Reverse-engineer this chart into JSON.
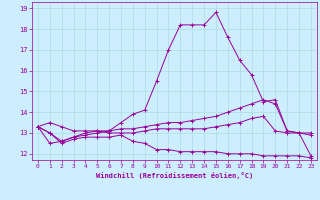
{
  "xlabel": "Windchill (Refroidissement éolien,°C)",
  "background_color": "#cceeff",
  "line_color": "#990099",
  "grid_color": "#aadddd",
  "xlim": [
    -0.5,
    23.5
  ],
  "ylim": [
    11.7,
    19.3
  ],
  "yticks": [
    12,
    13,
    14,
    15,
    16,
    17,
    18,
    19
  ],
  "xticks": [
    0,
    1,
    2,
    3,
    4,
    5,
    6,
    7,
    8,
    9,
    10,
    11,
    12,
    13,
    14,
    15,
    16,
    17,
    18,
    19,
    20,
    21,
    22,
    23
  ],
  "series": [
    [
      13.3,
      13.0,
      12.5,
      12.7,
      12.8,
      12.8,
      12.8,
      12.9,
      12.6,
      12.5,
      12.2,
      12.2,
      12.1,
      12.1,
      12.1,
      12.1,
      12.0,
      12.0,
      12.0,
      11.9,
      11.9,
      11.9,
      11.9,
      11.8
    ],
    [
      13.3,
      13.5,
      13.3,
      13.1,
      13.1,
      13.1,
      13.0,
      13.0,
      13.0,
      13.1,
      13.2,
      13.2,
      13.2,
      13.2,
      13.2,
      13.3,
      13.4,
      13.5,
      13.7,
      13.8,
      13.1,
      13.0,
      13.0,
      13.0
    ],
    [
      13.3,
      13.0,
      12.6,
      12.8,
      13.0,
      13.1,
      13.1,
      13.2,
      13.2,
      13.3,
      13.4,
      13.5,
      13.5,
      13.6,
      13.7,
      13.8,
      14.0,
      14.2,
      14.4,
      14.6,
      14.4,
      13.1,
      13.0,
      12.9
    ],
    [
      13.3,
      12.5,
      12.6,
      12.8,
      12.9,
      13.0,
      13.1,
      13.5,
      13.9,
      14.1,
      15.5,
      17.0,
      18.2,
      18.2,
      18.2,
      18.8,
      17.6,
      16.5,
      15.8,
      14.5,
      14.6,
      13.1,
      13.0,
      11.9
    ]
  ]
}
